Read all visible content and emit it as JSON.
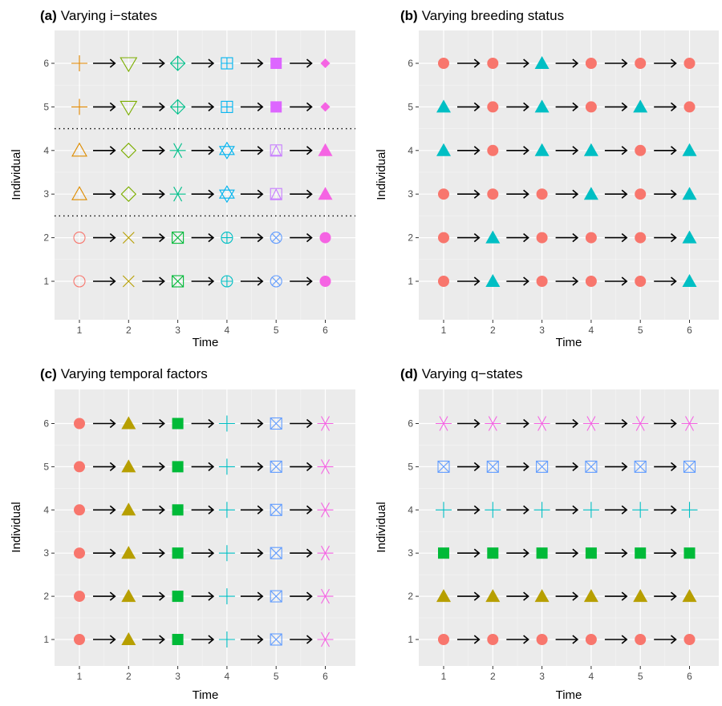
{
  "chart_data": [
    {
      "type": "scatter",
      "tag": "(a)",
      "title": "Varying i−states",
      "xlabel": "Time",
      "ylabel": "Individual",
      "x_ticks": [
        "1",
        "2",
        "3",
        "4",
        "5",
        "6"
      ],
      "y_ticks": [
        "1",
        "2",
        "3",
        "4",
        "5",
        "6"
      ],
      "xlim": [
        0.5,
        6.5
      ],
      "ylim": [
        0.5,
        6.5
      ],
      "arrows_between_points": true,
      "separators_y": [
        2.5,
        4.5
      ],
      "rows": [
        {
          "y": 1,
          "shapes": [
            "open-circle",
            "x-cross",
            "square-x",
            "circle-plus",
            "circle-x",
            "filled-circle"
          ]
        },
        {
          "y": 2,
          "shapes": [
            "open-circle",
            "x-cross",
            "square-x",
            "circle-plus",
            "circle-x",
            "filled-circle"
          ]
        },
        {
          "y": 3,
          "shapes": [
            "open-triangle",
            "open-diamond",
            "asterisk",
            "star-of-david",
            "square-triangle",
            "filled-triangle"
          ]
        },
        {
          "y": 4,
          "shapes": [
            "open-triangle",
            "open-diamond",
            "asterisk",
            "star-of-david",
            "square-triangle",
            "filled-triangle"
          ]
        },
        {
          "y": 5,
          "shapes": [
            "plus",
            "open-triangle-down",
            "diamond-plus",
            "square-plus",
            "filled-square",
            "filled-diamond"
          ]
        },
        {
          "y": 6,
          "shapes": [
            "plus",
            "open-triangle-down",
            "diamond-plus",
            "square-plus",
            "filled-square",
            "filled-diamond"
          ]
        }
      ],
      "colors_by_time": [
        "#F8766D",
        "#B79F00",
        "#00BA38",
        "#00BFC4",
        "#619CFF",
        "#F564E3"
      ],
      "colors_rows_3_4": [
        "#DE8C00",
        "#7CAE00",
        "#00C08B",
        "#00B4F0",
        "#C77CFF",
        "#F564E3"
      ],
      "colors_rows_5_6": [
        "#E38900",
        "#7CAE00",
        "#00C08B",
        "#00B4F0",
        "#DD66FF",
        "#F564E3"
      ]
    },
    {
      "type": "scatter",
      "tag": "(b)",
      "title": "Varying breeding status",
      "xlabel": "Time",
      "ylabel": "Individual",
      "x_ticks": [
        "1",
        "2",
        "3",
        "4",
        "5",
        "6"
      ],
      "y_ticks": [
        "1",
        "2",
        "3",
        "4",
        "5",
        "6"
      ],
      "xlim": [
        0.5,
        6.5
      ],
      "ylim": [
        0.5,
        6.5
      ],
      "arrows_between_points": true,
      "rows": [
        {
          "y": 1,
          "shapes": [
            "filled-circle",
            "filled-triangle",
            "filled-circle",
            "filled-circle",
            "filled-circle",
            "filled-triangle"
          ]
        },
        {
          "y": 2,
          "shapes": [
            "filled-circle",
            "filled-triangle",
            "filled-circle",
            "filled-circle",
            "filled-circle",
            "filled-triangle"
          ]
        },
        {
          "y": 3,
          "shapes": [
            "filled-circle",
            "filled-circle",
            "filled-circle",
            "filled-triangle",
            "filled-circle",
            "filled-triangle"
          ]
        },
        {
          "y": 4,
          "shapes": [
            "filled-triangle",
            "filled-circle",
            "filled-triangle",
            "filled-triangle",
            "filled-circle",
            "filled-triangle"
          ]
        },
        {
          "y": 5,
          "shapes": [
            "filled-triangle",
            "filled-circle",
            "filled-triangle",
            "filled-circle",
            "filled-triangle",
            "filled-circle"
          ]
        },
        {
          "y": 6,
          "shapes": [
            "filled-circle",
            "filled-circle",
            "filled-triangle",
            "filled-circle",
            "filled-circle",
            "filled-circle"
          ]
        }
      ],
      "shape_colors": {
        "filled-circle": "#F8766D",
        "filled-triangle": "#00BFC4"
      }
    },
    {
      "type": "scatter",
      "tag": "(c)",
      "title": "Varying temporal factors",
      "xlabel": "Time",
      "ylabel": "Individual",
      "x_ticks": [
        "1",
        "2",
        "3",
        "4",
        "5",
        "6"
      ],
      "y_ticks": [
        "1",
        "2",
        "3",
        "4",
        "5",
        "6"
      ],
      "xlim": [
        0.5,
        6.5
      ],
      "ylim": [
        0.5,
        6.5
      ],
      "arrows_between_points": true,
      "column_shapes": [
        "filled-circle",
        "filled-triangle",
        "filled-square",
        "plus",
        "square-x",
        "asterisk"
      ],
      "column_colors": [
        "#F8766D",
        "#B79F00",
        "#00BA38",
        "#00BFC4",
        "#619CFF",
        "#F564E3"
      ]
    },
    {
      "type": "scatter",
      "tag": "(d)",
      "title": "Varying q−states",
      "xlabel": "Time",
      "ylabel": "Individual",
      "x_ticks": [
        "1",
        "2",
        "3",
        "4",
        "5",
        "6"
      ],
      "y_ticks": [
        "1",
        "2",
        "3",
        "4",
        "5",
        "6"
      ],
      "xlim": [
        0.5,
        6.5
      ],
      "ylim": [
        0.5,
        6.5
      ],
      "arrows_between_points": true,
      "row_shapes": [
        "filled-circle",
        "filled-triangle",
        "filled-square",
        "plus",
        "square-x",
        "asterisk"
      ],
      "row_colors": [
        "#F8766D",
        "#B79F00",
        "#00BA38",
        "#00BFC4",
        "#619CFF",
        "#F564E3"
      ]
    }
  ]
}
